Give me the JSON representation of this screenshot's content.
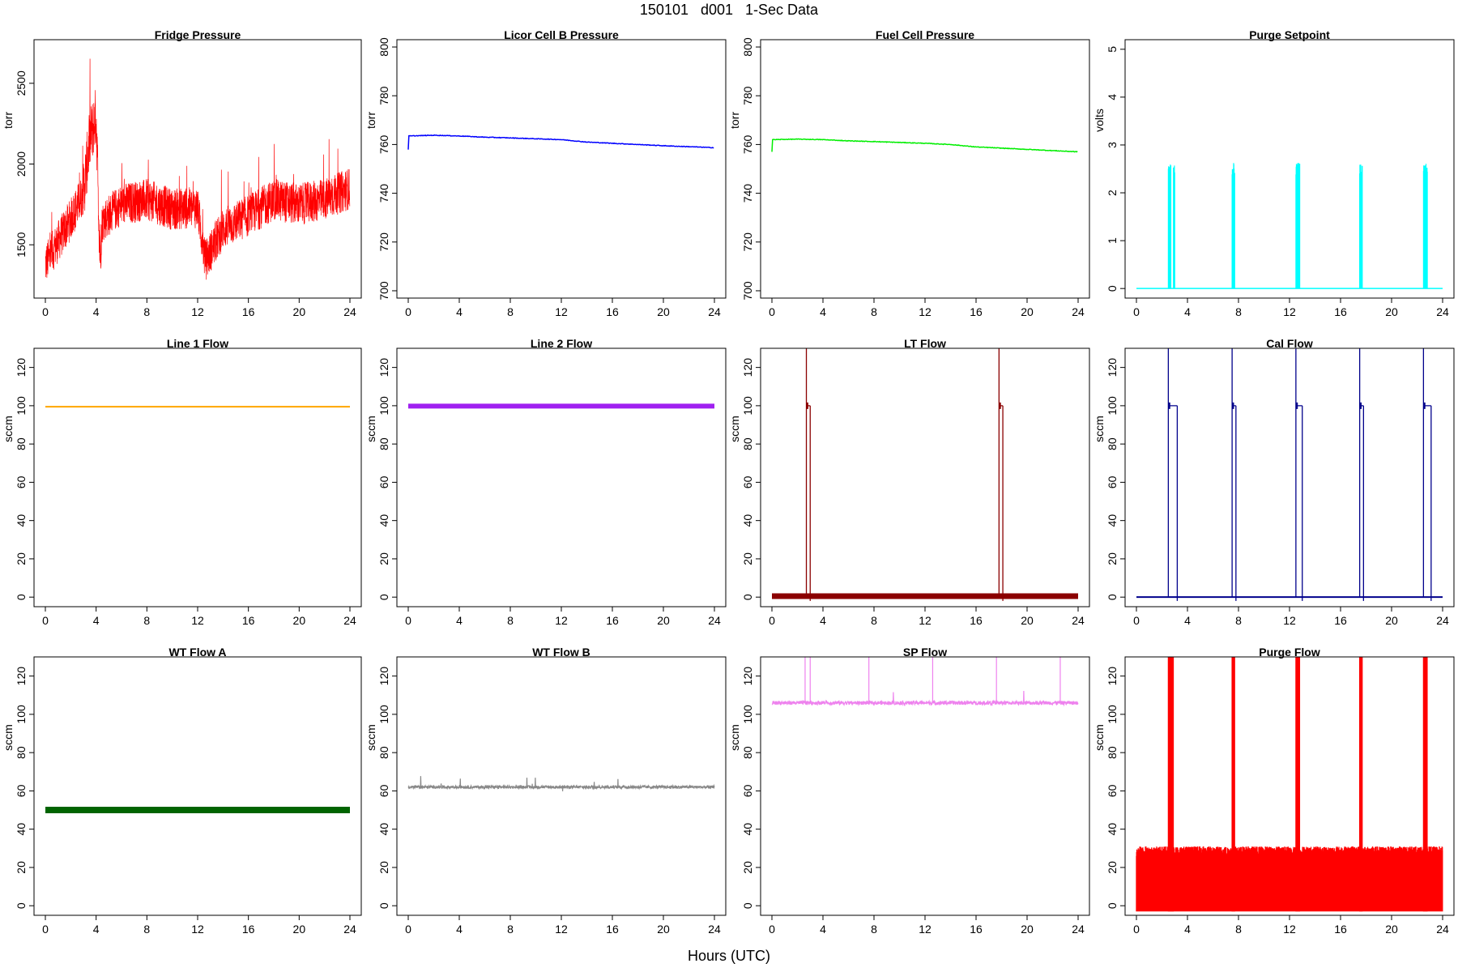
{
  "main_title": "150101   d001   1-Sec Data",
  "x_label": "Hours (UTC)",
  "chart_data": [
    {
      "type": "line",
      "title": "Fridge Pressure",
      "ylabel": "torr",
      "color": "#ff0000",
      "xlim": [
        0,
        24
      ],
      "ylim": [
        1170,
        2770
      ],
      "yticks": [
        1500,
        2000,
        2500
      ],
      "xticks": [
        0,
        4,
        8,
        12,
        16,
        20,
        24
      ],
      "pattern": "fridge",
      "series": [
        {
          "x": [
            0,
            1,
            2,
            3,
            3.5,
            4,
            4.3,
            4.5,
            6,
            8,
            10,
            12,
            12.6,
            14,
            16,
            18,
            20,
            22,
            24
          ],
          "y": [
            1380,
            1520,
            1660,
            1820,
            2150,
            2300,
            1450,
            1650,
            1750,
            1780,
            1720,
            1730,
            1400,
            1600,
            1680,
            1780,
            1750,
            1780,
            1850
          ]
        }
      ]
    },
    {
      "type": "line",
      "title": "Licor Cell B Pressure",
      "ylabel": "torr",
      "color": "#0000ff",
      "xlim": [
        0,
        24
      ],
      "ylim": [
        697,
        803
      ],
      "yticks": [
        700,
        720,
        740,
        760,
        780,
        800
      ],
      "xticks": [
        0,
        4,
        8,
        12,
        16,
        20,
        24
      ],
      "pattern": "smooth",
      "series": [
        {
          "x": [
            0,
            0.05,
            2,
            4,
            6,
            8,
            12,
            14,
            16,
            20,
            24
          ],
          "y": [
            758,
            763.5,
            763.8,
            763.5,
            763,
            762.7,
            762,
            761,
            760.5,
            759.5,
            758.7
          ]
        }
      ]
    },
    {
      "type": "line",
      "title": "Fuel Cell Pressure",
      "ylabel": "torr",
      "color": "#00ee00",
      "xlim": [
        0,
        24
      ],
      "ylim": [
        697,
        803
      ],
      "yticks": [
        700,
        720,
        740,
        760,
        780,
        800
      ],
      "xticks": [
        0,
        4,
        8,
        12,
        16,
        20,
        24
      ],
      "pattern": "smooth",
      "series": [
        {
          "x": [
            0,
            0.05,
            2,
            4,
            6,
            8,
            12,
            14,
            16,
            20,
            24
          ],
          "y": [
            757,
            762,
            762.2,
            762,
            761.5,
            761.2,
            760.5,
            760,
            759,
            758,
            757
          ]
        }
      ]
    },
    {
      "type": "line",
      "title": "Purge Setpoint",
      "ylabel": "volts",
      "color": "#00ffff",
      "xlim": [
        0,
        24
      ],
      "ylim": [
        -0.2,
        5.2
      ],
      "yticks": [
        0,
        1,
        2,
        3,
        4,
        5
      ],
      "xticks": [
        0,
        4,
        8,
        12,
        16,
        20,
        24
      ],
      "pattern": "pulses",
      "baseline": 0,
      "pulse_level": 2.5,
      "pulses": [
        [
          2.5,
          2.7
        ],
        [
          2.9,
          3.0
        ],
        [
          7.5,
          7.7
        ],
        [
          12.5,
          12.8
        ],
        [
          17.5,
          17.7
        ],
        [
          22.5,
          22.8
        ]
      ]
    },
    {
      "type": "line",
      "title": "Line 1 Flow",
      "ylabel": "sccm",
      "color": "#ffa500",
      "xlim": [
        0,
        24
      ],
      "ylim": [
        -5,
        130
      ],
      "yticks": [
        0,
        20,
        40,
        60,
        80,
        100,
        120
      ],
      "xticks": [
        0,
        4,
        8,
        12,
        16,
        20,
        24
      ],
      "pattern": "flat",
      "level": 99.5,
      "width": 2
    },
    {
      "type": "line",
      "title": "Line 2 Flow",
      "ylabel": "sccm",
      "color": "#a020f0",
      "xlim": [
        0,
        24
      ],
      "ylim": [
        -5,
        130
      ],
      "yticks": [
        0,
        20,
        40,
        60,
        80,
        100,
        120
      ],
      "xticks": [
        0,
        4,
        8,
        12,
        16,
        20,
        24
      ],
      "pattern": "flat",
      "level": 99.8,
      "width": 6
    },
    {
      "type": "line",
      "title": "LT Flow",
      "ylabel": "sccm",
      "color": "#8b0000",
      "xlim": [
        0,
        24
      ],
      "ylim": [
        -5,
        130
      ],
      "yticks": [
        0,
        20,
        40,
        60,
        80,
        100,
        120
      ],
      "xticks": [
        0,
        4,
        8,
        12,
        16,
        20,
        24
      ],
      "pattern": "steps",
      "baseline": 0.5,
      "baseline_width": 7,
      "steps": [
        [
          2.7,
          3.0
        ],
        [
          17.8,
          18.1
        ]
      ],
      "step_level": 100
    },
    {
      "type": "line",
      "title": "Cal Flow",
      "ylabel": "sccm",
      "color": "#00008b",
      "xlim": [
        0,
        24
      ],
      "ylim": [
        -5,
        130
      ],
      "yticks": [
        0,
        20,
        40,
        60,
        80,
        100,
        120
      ],
      "xticks": [
        0,
        4,
        8,
        12,
        16,
        20,
        24
      ],
      "pattern": "steps",
      "baseline": 0,
      "baseline_width": 2,
      "steps": [
        [
          2.5,
          3.2
        ],
        [
          7.5,
          7.8
        ],
        [
          12.5,
          13.0
        ],
        [
          17.5,
          17.8
        ],
        [
          22.5,
          23.1
        ]
      ],
      "step_level": 100
    },
    {
      "type": "line",
      "title": "WT Flow A",
      "ylabel": "sccm",
      "color": "#006400",
      "xlim": [
        0,
        24
      ],
      "ylim": [
        -5,
        130
      ],
      "yticks": [
        0,
        20,
        40,
        60,
        80,
        100,
        120
      ],
      "xticks": [
        0,
        4,
        8,
        12,
        16,
        20,
        24
      ],
      "pattern": "flat",
      "level": 50,
      "width": 8
    },
    {
      "type": "line",
      "title": "WT Flow B",
      "ylabel": "sccm",
      "color": "#888888",
      "xlim": [
        0,
        24
      ],
      "ylim": [
        -5,
        130
      ],
      "yticks": [
        0,
        20,
        40,
        60,
        80,
        100,
        120
      ],
      "xticks": [
        0,
        4,
        8,
        12,
        16,
        20,
        24
      ],
      "pattern": "noisy",
      "level": 62,
      "noise": 1.5
    },
    {
      "type": "line",
      "title": "SP Flow",
      "ylabel": "sccm",
      "color": "#ee82ee",
      "xlim": [
        0,
        24
      ],
      "ylim": [
        -5,
        130
      ],
      "yticks": [
        0,
        20,
        40,
        60,
        80,
        100,
        120
      ],
      "xticks": [
        0,
        4,
        8,
        12,
        16,
        20,
        24
      ],
      "pattern": "noisy_spikes",
      "level": 106,
      "noise": 2,
      "spikes": [
        2.6,
        3.0,
        7.6,
        12.6,
        17.6,
        22.6
      ]
    },
    {
      "type": "area",
      "title": "Purge Flow",
      "ylabel": "sccm",
      "color": "#ff0000",
      "xlim": [
        0,
        24
      ],
      "ylim": [
        -5,
        130
      ],
      "yticks": [
        0,
        20,
        40,
        60,
        80,
        100,
        120
      ],
      "xticks": [
        0,
        4,
        8,
        12,
        16,
        20,
        24
      ],
      "pattern": "purge",
      "level": 28,
      "pulses": [
        [
          2.5,
          2.9
        ],
        [
          7.5,
          7.7
        ],
        [
          12.5,
          12.8
        ],
        [
          17.5,
          17.7
        ],
        [
          22.5,
          22.8
        ]
      ]
    }
  ]
}
